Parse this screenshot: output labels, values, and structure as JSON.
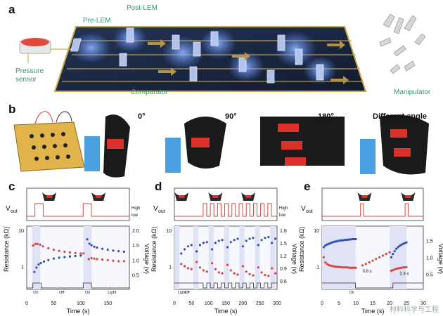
{
  "panel_labels": {
    "a": "a",
    "b": "b",
    "c": "c",
    "d": "d",
    "e": "e"
  },
  "panel_a": {
    "pre_lem": "Pre-LEM",
    "post_lem": "Post-LEM",
    "pressure_sensor": [
      "Pressure",
      "sensor"
    ],
    "comparator": "Comparator",
    "manipulator": "Manipulator",
    "colors": {
      "board": "#1c2a44",
      "glow": "#5a8cff",
      "sensor_button": "#e04a3c",
      "label": "#2e9a6e"
    }
  },
  "panel_b": {
    "angles": [
      "0°",
      "90°",
      "180°",
      "Different angle"
    ]
  },
  "panel_c": {
    "vout_label": "V",
    "vout_sub": "out",
    "high": "High",
    "low": "low",
    "ylabel_left": "Resistance (kΩ)",
    "ylabel_right": "Voltage (v)",
    "xlabel": "Time (s)",
    "left_ticks": [
      "10",
      "1"
    ],
    "right_ticks": [
      "2.0",
      "1.5",
      "1.0",
      "0.5"
    ],
    "x_ticks": [
      "0",
      "50",
      "100",
      "150"
    ],
    "bar_labels": [
      "On",
      "Off",
      "On",
      "Light"
    ]
  },
  "panel_d": {
    "vout_label": "V",
    "vout_sub": "out",
    "high": "High",
    "low": "low",
    "ylabel_left": "Resistance (kΩ)",
    "ylabel_right": "Voltage (v)",
    "xlabel": "Time (s)",
    "left_ticks": [
      "10",
      "1"
    ],
    "right_ticks": [
      "1.8",
      "1.5",
      "1.2",
      "0.9",
      "0.6"
    ],
    "x_ticks": [
      "0",
      "50",
      "100",
      "150",
      "200",
      "250",
      "300"
    ],
    "bar_labels": [
      "Light",
      "Off"
    ]
  },
  "panel_e": {
    "vout_label": "V",
    "vout_sub": "out",
    "ylabel_left": "Resistance (kΩ)",
    "ylabel_right": "Voltage (v)",
    "xlabel": "Time (s)",
    "left_ticks": [
      "10",
      "1"
    ],
    "right_ticks": [
      "1.5",
      "1.0",
      "0.5"
    ],
    "x_ticks": [
      "0",
      "5",
      "10",
      "15",
      "20",
      "25",
      "30"
    ],
    "annotations": [
      "0.8 s",
      "2.3 s"
    ],
    "bar_labels": [
      "On"
    ]
  },
  "watermark": "材料科学与工程",
  "chart_data": [
    {
      "type": "scatter",
      "panel": "c",
      "xlabel": "Time (s)",
      "ylabel": "Resistance (kΩ)",
      "y2label": "Voltage (v)",
      "xlim": [
        0,
        190
      ],
      "ylim": [
        0.4,
        10
      ],
      "y2lim": [
        0.3,
        2.0
      ],
      "series": [
        {
          "axis": "left",
          "color": "#d8453f",
          "x": [
            12,
            16,
            20,
            25,
            30,
            40,
            50,
            60,
            70,
            80,
            90,
            100,
            105,
            115,
            120,
            125,
            130,
            140,
            150,
            160,
            170,
            180
          ],
          "y": [
            3.8,
            4.2,
            4.2,
            4.0,
            3.6,
            3.2,
            2.9,
            2.7,
            2.55,
            2.45,
            2.35,
            2.3,
            2.3,
            1.6,
            1.7,
            1.65,
            1.6,
            1.55,
            1.5,
            1.45,
            1.4,
            1.4
          ]
        },
        {
          "axis": "right",
          "color": "#2e4fb8",
          "x": [
            14,
            18,
            22,
            26,
            32,
            40,
            50,
            60,
            70,
            80,
            90,
            100,
            112,
            116,
            120,
            125,
            130,
            140,
            150,
            160,
            170,
            180
          ],
          "y": [
            0.6,
            0.75,
            0.85,
            0.9,
            0.95,
            1.0,
            1.05,
            1.08,
            1.1,
            1.12,
            1.14,
            1.15,
            1.7,
            1.55,
            1.5,
            1.45,
            1.42,
            1.38,
            1.35,
            1.32,
            1.3,
            1.28
          ]
        }
      ]
    },
    {
      "type": "scatter",
      "panel": "d",
      "xlabel": "Time (s)",
      "ylabel": "Resistance (kΩ)",
      "y2label": "Voltage (v)",
      "xlim": [
        0,
        300
      ],
      "ylim": [
        0.4,
        10
      ],
      "y2lim": [
        0.6,
        1.8
      ],
      "series": [
        {
          "axis": "right",
          "color": "#2e4fb8",
          "x": [
            20,
            30,
            40,
            50,
            65,
            75,
            85,
            95,
            110,
            120,
            130,
            140,
            155,
            165,
            175,
            185,
            200,
            210,
            220,
            230,
            245,
            255,
            265,
            275,
            285,
            295
          ],
          "y": [
            1.25,
            1.35,
            1.42,
            1.45,
            1.3,
            1.45,
            1.5,
            1.52,
            1.35,
            1.5,
            1.55,
            1.57,
            1.4,
            1.52,
            1.57,
            1.6,
            1.42,
            1.55,
            1.6,
            1.62,
            1.45,
            1.57,
            1.62,
            1.64,
            1.5,
            1.6
          ]
        },
        {
          "axis": "right",
          "color": "#d8453f",
          "x": [
            20,
            30,
            40,
            50,
            65,
            75,
            85,
            95,
            110,
            120,
            130,
            140,
            155,
            165,
            175,
            185,
            200,
            210,
            220,
            230,
            245,
            255,
            265,
            275,
            285,
            295
          ],
          "y": [
            1.0,
            0.95,
            0.9,
            0.88,
            1.05,
            0.92,
            0.85,
            0.82,
            1.02,
            0.88,
            0.8,
            0.78,
            0.98,
            0.85,
            0.78,
            0.75,
            0.95,
            0.82,
            0.76,
            0.73,
            0.92,
            0.8,
            0.74,
            0.72,
            0.9,
            0.78
          ]
        }
      ]
    },
    {
      "type": "scatter",
      "panel": "e",
      "xlabel": "Time (s)",
      "ylabel": "Resistance (kΩ)",
      "y2label": "Voltage (v)",
      "xlim": [
        0,
        30
      ],
      "ylim": [
        0.4,
        10
      ],
      "y2lim": [
        0.3,
        1.8
      ],
      "series": [
        {
          "axis": "right",
          "color": "#2e4fb8",
          "x": [
            0.5,
            1,
            1.5,
            2,
            2.5,
            3,
            3.5,
            4,
            4.5,
            5,
            5.5,
            6,
            6.5,
            7,
            7.5,
            8,
            8.5,
            9,
            9.5,
            10,
            20.5,
            21,
            21.5,
            22,
            22.5,
            23,
            23.5,
            24,
            24.5,
            25
          ],
          "y": [
            1.3,
            1.35,
            1.38,
            1.4,
            1.42,
            1.44,
            1.46,
            1.47,
            1.48,
            1.49,
            1.5,
            1.5,
            1.51,
            1.52,
            1.52,
            1.53,
            1.53,
            1.54,
            1.54,
            1.54,
            1.0,
            1.1,
            1.18,
            1.25,
            1.3,
            1.34,
            1.37,
            1.4,
            1.42,
            1.44
          ]
        },
        {
          "axis": "right",
          "color": "#d8453f",
          "x": [
            0.5,
            1,
            1.5,
            2,
            2.5,
            3,
            3.5,
            4,
            4.5,
            5,
            5.5,
            6,
            6.5,
            7,
            7.5,
            8,
            8.5,
            9,
            9.5,
            10,
            12,
            13,
            14,
            15,
            16,
            17,
            18,
            19,
            20,
            20.5,
            21,
            21.5,
            22,
            22.5,
            23,
            23.5,
            24,
            24.5,
            25
          ],
          "y": [
            1.0,
            0.85,
            0.8,
            0.77,
            0.75,
            0.74,
            0.73,
            0.72,
            0.72,
            0.71,
            0.71,
            0.7,
            0.7,
            0.7,
            0.7,
            0.69,
            0.69,
            0.69,
            0.69,
            0.69,
            0.76,
            0.8,
            0.85,
            0.9,
            0.95,
            1.0,
            1.05,
            1.1,
            1.15,
            0.6,
            0.62,
            0.64,
            0.66,
            0.67,
            0.68,
            0.69,
            0.7,
            0.7,
            0.71
          ]
        }
      ]
    }
  ]
}
